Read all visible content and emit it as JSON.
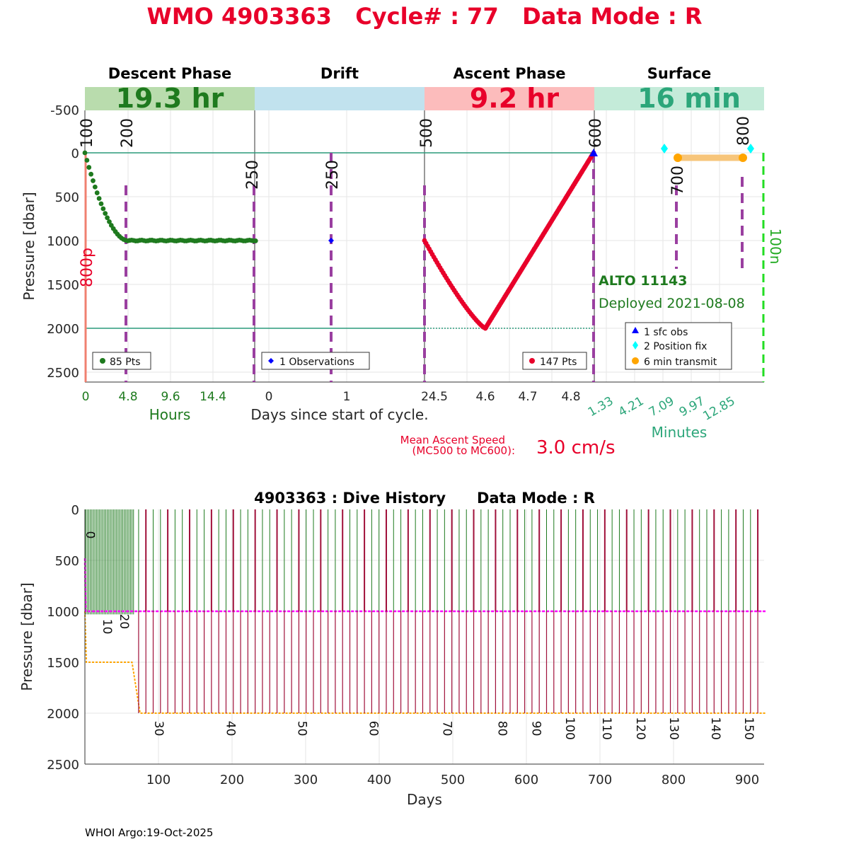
{
  "header": {
    "title": "WMO 4903363   Cycle# : 77   Data Mode : R",
    "title_color": "#e8002a"
  },
  "phases": [
    {
      "name": "Descent Phase",
      "duration": "19.3 hr",
      "band_color": "#b9dcad",
      "text_color": "#1e7a1e"
    },
    {
      "name": "Drift",
      "duration": "",
      "band_color": "#c1e2ee",
      "text_color": "#000000"
    },
    {
      "name": "Ascent Phase",
      "duration": "9.2 hr",
      "band_color": "#fcbcbc",
      "text_color": "#e8002a"
    },
    {
      "name": "Surface",
      "duration": "16 min",
      "band_color": "#c4ebd9",
      "text_color": "#2ca67a"
    }
  ],
  "top_panel": {
    "ylabel": "Pressure [dbar]",
    "yticks": [
      "-500",
      "0",
      "500",
      "1000",
      "1500",
      "2000",
      "2500"
    ],
    "yrange": [
      -750,
      2600
    ],
    "descent": {
      "xlabel": "Hours",
      "xlabel_color": "#1e7a1e",
      "xticks": [
        "0",
        "4.8",
        "9.6",
        "14.4"
      ],
      "xrange": [
        0,
        19.3
      ],
      "legend": "85 Pts",
      "color": "#1e7a1e",
      "mc_labels": [
        "100",
        "200"
      ],
      "side_label": "800p",
      "side_label_color": "#e8002a",
      "drift_target": 1000,
      "settle_hour": 4.8,
      "n_points": 85
    },
    "drift": {
      "xticks": [
        "0",
        "1"
      ],
      "center_label": "Days since start of cycle.",
      "legend": "1 Observations",
      "color": "#0000ff",
      "mc_labels": [
        "250",
        "250"
      ],
      "observation": {
        "day": 0.8,
        "pressure": 1000
      }
    },
    "ascent": {
      "xticks": [
        "24.5",
        "4.6",
        "4.7",
        "4.8"
      ],
      "legend": "147 Pts",
      "color": "#e8002a",
      "mc_labels": [
        "500",
        "600"
      ],
      "profile": {
        "start_pressure": 1000,
        "max_pressure": 2000,
        "end_pressure": 0
      },
      "mean_speed_label_1": "Mean Ascent Speed",
      "mean_speed_label_2": "(MC500 to MC600):",
      "mean_speed_value": "3.0 cm/s",
      "n_points": 147
    },
    "surface": {
      "xlabel": "Minutes",
      "xlabel_color": "#2ca67a",
      "xticks": [
        "1.33",
        "4.21",
        "7.09",
        "9.97",
        "12.85"
      ],
      "mc_labels": [
        "700",
        "800"
      ],
      "green_label": "100n",
      "float_name": "ALTO 11143",
      "deployed": "Deployed 2021-08-08",
      "legend": [
        {
          "label": "1 sfc obs",
          "color": "#0000ff"
        },
        {
          "label": "2 Position fix",
          "color": "#00ffff"
        },
        {
          "label": "6 min transmit",
          "color": "#ffa500"
        }
      ]
    }
  },
  "bottom_panel": {
    "title": "4903363 : Dive History      Data Mode : R",
    "xlabel": "Days",
    "ylabel": "Pressure [dbar]",
    "xticks": [
      "100",
      "200",
      "300",
      "400",
      "500",
      "600",
      "700",
      "800",
      "900"
    ],
    "yticks": [
      "0",
      "500",
      "1000",
      "1500",
      "2000",
      "2500"
    ],
    "xrange": [
      0,
      925
    ],
    "yrange": [
      0,
      2500
    ],
    "cycle_labels": [
      {
        "label": "0",
        "day": 2,
        "pressure": 250
      },
      {
        "label": "10",
        "day": 25,
        "pressure": 1150
      },
      {
        "label": "20",
        "day": 48,
        "pressure": 1100
      },
      {
        "label": "30",
        "day": 95,
        "pressure": 2150
      },
      {
        "label": "40",
        "day": 193,
        "pressure": 2150
      },
      {
        "label": "50",
        "day": 290,
        "pressure": 2150
      },
      {
        "label": "60",
        "day": 387,
        "pressure": 2150
      },
      {
        "label": "70",
        "day": 487,
        "pressure": 2150
      },
      {
        "label": "80",
        "day": 562,
        "pressure": 2150
      },
      {
        "label": "90",
        "day": 608,
        "pressure": 2150
      },
      {
        "label": "100",
        "day": 654,
        "pressure": 2150
      },
      {
        "label": "110",
        "day": 704,
        "pressure": 2150
      },
      {
        "label": "120",
        "day": 750,
        "pressure": 2150
      },
      {
        "label": "130",
        "day": 795,
        "pressure": 2150
      },
      {
        "label": "140",
        "day": 852,
        "pressure": 2150
      },
      {
        "label": "150",
        "day": 897,
        "pressure": 2150
      }
    ],
    "park_pressure": 1000,
    "profile_pressure_early": 1500,
    "profile_pressure": 2000,
    "early_phase_end_day": 67,
    "profile_color": "#a0103a",
    "drift_color": "#1e7a1e",
    "park_color": "#ff00ff",
    "target_color": "#ffa500"
  },
  "footer": {
    "credit": "WHOI Argo:19-Oct-2025"
  }
}
